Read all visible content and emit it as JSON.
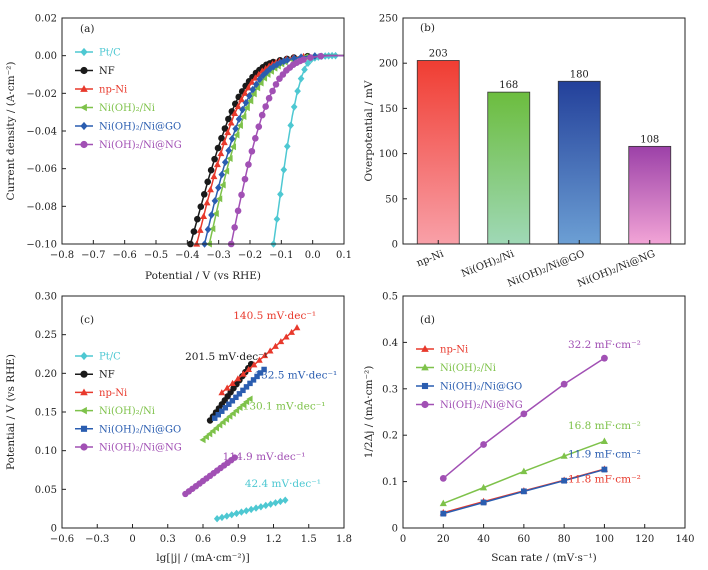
{
  "chart_data": [
    {
      "panel": "(a)",
      "type": "line",
      "xlabel": "Potential / V (vs RHE)",
      "ylabel": "Current density / (A·cm⁻²)",
      "xlim": [
        -0.8,
        0.1
      ],
      "ylim": [
        -0.1,
        0.02
      ],
      "xticks": [
        "−0.8",
        "−0.7",
        "−0.6",
        "−0.5",
        "−0.4",
        "−0.3",
        "−0.2",
        "−0.1",
        "0.0",
        "0.1"
      ],
      "yticks": [
        "−0.10",
        "−0.08",
        "−0.06",
        "−0.04",
        "−0.02",
        "0.00",
        "0.02"
      ],
      "legend": "top-left",
      "series": [
        {
          "name": "Pt/C",
          "color": "#4ec8d2",
          "marker": "diamond",
          "x": [
            -0.125,
            -0.11,
            -0.095,
            -0.08,
            -0.065,
            -0.05,
            -0.035,
            -0.02,
            -0.005,
            0.01,
            0.03,
            0.06,
            0.1
          ],
          "y": [
            -0.1,
            -0.082,
            -0.064,
            -0.047,
            -0.032,
            -0.02,
            -0.011,
            -0.005,
            -0.002,
            -0.001,
            -0.0003,
            0,
            0
          ]
        },
        {
          "name": "NF",
          "color": "#1a1a1a",
          "marker": "circle",
          "x": [
            -0.39,
            -0.36,
            -0.33,
            -0.3,
            -0.27,
            -0.24,
            -0.21,
            -0.18,
            -0.15,
            -0.12,
            -0.09,
            -0.06,
            -0.03,
            0.0,
            0.05,
            0.1
          ],
          "y": [
            -0.1,
            -0.082,
            -0.064,
            -0.048,
            -0.034,
            -0.023,
            -0.015,
            -0.009,
            -0.005,
            -0.003,
            -0.002,
            -0.001,
            -0.0005,
            0,
            0,
            0
          ]
        },
        {
          "name": "np-Ni",
          "color": "#e8392c",
          "marker": "triangle-up",
          "x": [
            -0.37,
            -0.34,
            -0.31,
            -0.28,
            -0.25,
            -0.22,
            -0.19,
            -0.16,
            -0.13,
            -0.1,
            -0.07,
            -0.04,
            0.0,
            0.05,
            0.1
          ],
          "y": [
            -0.1,
            -0.08,
            -0.061,
            -0.045,
            -0.031,
            -0.021,
            -0.013,
            -0.008,
            -0.0045,
            -0.0025,
            -0.0013,
            -0.0006,
            0,
            0,
            0
          ]
        },
        {
          "name": "Ni(OH)₂/Ni",
          "color": "#7ec24a",
          "marker": "triangle-left",
          "x": [
            -0.33,
            -0.3,
            -0.27,
            -0.24,
            -0.21,
            -0.18,
            -0.15,
            -0.12,
            -0.09,
            -0.06,
            -0.03,
            0.0,
            0.05,
            0.1
          ],
          "y": [
            -0.1,
            -0.078,
            -0.058,
            -0.041,
            -0.028,
            -0.018,
            -0.011,
            -0.0065,
            -0.0035,
            -0.0018,
            -0.0008,
            0,
            0,
            0
          ]
        },
        {
          "name": "Ni(OH)₂/Ni@GO",
          "color": "#2a5db0",
          "marker": "diamond",
          "x": [
            -0.345,
            -0.315,
            -0.285,
            -0.255,
            -0.225,
            -0.195,
            -0.165,
            -0.135,
            -0.105,
            -0.075,
            -0.045,
            -0.015,
            0.03,
            0.1
          ],
          "y": [
            -0.1,
            -0.079,
            -0.06,
            -0.043,
            -0.029,
            -0.019,
            -0.0115,
            -0.0068,
            -0.0038,
            -0.002,
            -0.001,
            -0.0003,
            0,
            0
          ]
        },
        {
          "name": "Ni(OH)₂/Ni@NG",
          "color": "#a150b4",
          "marker": "circle",
          "x": [
            -0.26,
            -0.235,
            -0.21,
            -0.185,
            -0.16,
            -0.135,
            -0.11,
            -0.085,
            -0.06,
            -0.035,
            -0.01,
            0.02,
            0.06,
            0.1
          ],
          "y": [
            -0.1,
            -0.08,
            -0.061,
            -0.045,
            -0.031,
            -0.021,
            -0.013,
            -0.008,
            -0.0045,
            -0.0024,
            -0.0011,
            -0.0003,
            0,
            0
          ]
        }
      ]
    },
    {
      "panel": "(b)",
      "type": "bar",
      "ylabel": "Overpotential / mV",
      "ylim": [
        0,
        250
      ],
      "yticks": [
        "0",
        "50",
        "100",
        "150",
        "200",
        "250"
      ],
      "categories": [
        "np-Ni",
        "Ni(OH)₂/Ni",
        "Ni(OH)₂/Ni@GO",
        "Ni(OH)₂/Ni@NG"
      ],
      "values": [
        203,
        168,
        180,
        108
      ],
      "value_labels": [
        "203",
        "168",
        "180",
        "108"
      ],
      "colors": [
        [
          "#f03d32",
          "#f8a0a8"
        ],
        [
          "#6cbd3e",
          "#9fd8b6"
        ],
        [
          "#23409a",
          "#6c9fd4"
        ],
        [
          "#9c41a8",
          "#f2a4d6"
        ]
      ]
    },
    {
      "panel": "(c)",
      "type": "scatter",
      "xlabel": "lg[|j| / (mA·cm⁻²)]",
      "ylabel": "Potential / V (vs RHE)",
      "xlim": [
        -0.6,
        1.8
      ],
      "ylim": [
        0,
        0.3
      ],
      "xticks": [
        "−0.6",
        "−0.3",
        "0",
        "0.3",
        "0.6",
        "0.9",
        "1.2",
        "1.5",
        "1.8"
      ],
      "yticks": [
        "0",
        "0.05",
        "0.10",
        "0.15",
        "0.20",
        "0.25",
        "0.30"
      ],
      "legend": "left",
      "series": [
        {
          "name": "Pt/C",
          "color": "#4ec8d2",
          "marker": "diamond",
          "x": [
            0.72,
            1.3
          ],
          "y": [
            0.012,
            0.036
          ]
        },
        {
          "name": "NF",
          "color": "#1a1a1a",
          "marker": "circle",
          "x": [
            0.66,
            1.01
          ],
          "y": [
            0.139,
            0.212
          ]
        },
        {
          "name": "np-Ni",
          "color": "#e8392c",
          "marker": "triangle-up",
          "x": [
            0.76,
            1.4
          ],
          "y": [
            0.175,
            0.259
          ]
        },
        {
          "name": "Ni(OH)₂/Ni",
          "color": "#7ec24a",
          "marker": "triangle-left",
          "x": [
            0.6,
            1.0
          ],
          "y": [
            0.114,
            0.167
          ]
        },
        {
          "name": "Ni(OH)₂/Ni@GO",
          "color": "#2a5db0",
          "marker": "square",
          "x": [
            0.7,
            1.12
          ],
          "y": [
            0.142,
            0.205
          ]
        },
        {
          "name": "Ni(OH)₂/Ni@NG",
          "color": "#a150b4",
          "marker": "circle",
          "x": [
            0.45,
            0.87
          ],
          "y": [
            0.044,
            0.091
          ]
        }
      ],
      "annotations": [
        {
          "text": "140.5 mV·dec⁻¹",
          "color": "#e8392c",
          "x": 1.21,
          "y": 0.27
        },
        {
          "text": "201.5 mV·dec⁻¹",
          "color": "#1a1a1a",
          "x": 0.8,
          "y": 0.217
        },
        {
          "text": "132.5 mV·dec⁻¹",
          "color": "#2a5db0",
          "x": 1.39,
          "y": 0.193
        },
        {
          "text": "130.1 mV·dec⁻¹",
          "color": "#7ec24a",
          "x": 1.29,
          "y": 0.153
        },
        {
          "text": "114.9 mV·dec⁻¹",
          "color": "#a150b4",
          "x": 1.12,
          "y": 0.088
        },
        {
          "text": "42.4 mV·dec⁻¹",
          "color": "#4ec8d2",
          "x": 1.28,
          "y": 0.053
        }
      ]
    },
    {
      "panel": "(d)",
      "type": "scatter",
      "xlabel": "Scan rate / (mV·s⁻¹)",
      "ylabel": "1/2Δj / (mA·cm⁻²)",
      "xlim": [
        0,
        140
      ],
      "ylim": [
        0,
        0.5
      ],
      "xticks": [
        "0",
        "20",
        "40",
        "60",
        "80",
        "100",
        "120",
        "140"
      ],
      "yticks": [
        "0",
        "0.1",
        "0.2",
        "0.3",
        "0.4",
        "0.5"
      ],
      "legend": "top-left",
      "series": [
        {
          "name": "np-Ni",
          "color": "#e8392c",
          "marker": "triangle-up",
          "x": [
            20,
            40,
            60,
            80,
            100
          ],
          "y": [
            0.033,
            0.057,
            0.08,
            0.103,
            0.127
          ]
        },
        {
          "name": "Ni(OH)₂/Ni",
          "color": "#7ec24a",
          "marker": "triangle-up",
          "x": [
            20,
            40,
            60,
            80,
            100
          ],
          "y": [
            0.053,
            0.087,
            0.122,
            0.155,
            0.187
          ]
        },
        {
          "name": "Ni(OH)₂/Ni@GO",
          "color": "#2a5db0",
          "marker": "square",
          "x": [
            20,
            40,
            60,
            80,
            100
          ],
          "y": [
            0.031,
            0.055,
            0.079,
            0.102,
            0.126
          ]
        },
        {
          "name": "Ni(OH)₂/Ni@NG",
          "color": "#a150b4",
          "marker": "circle",
          "x": [
            20,
            40,
            60,
            80,
            100
          ],
          "y": [
            0.107,
            0.18,
            0.246,
            0.31,
            0.366
          ]
        }
      ],
      "annotations": [
        {
          "text": "32.2 mF·cm⁻²",
          "color": "#a150b4",
          "x": 100,
          "y": 0.388
        },
        {
          "text": "16.8 mF·cm⁻²",
          "color": "#7ec24a",
          "x": 100,
          "y": 0.213
        },
        {
          "text": "11.9 mF·cm⁻²",
          "color": "#2a5db0",
          "x": 100,
          "y": 0.152
        },
        {
          "text": "11.8 mF·cm⁻²",
          "color": "#e8392c",
          "x": 100,
          "y": 0.098
        }
      ]
    }
  ]
}
